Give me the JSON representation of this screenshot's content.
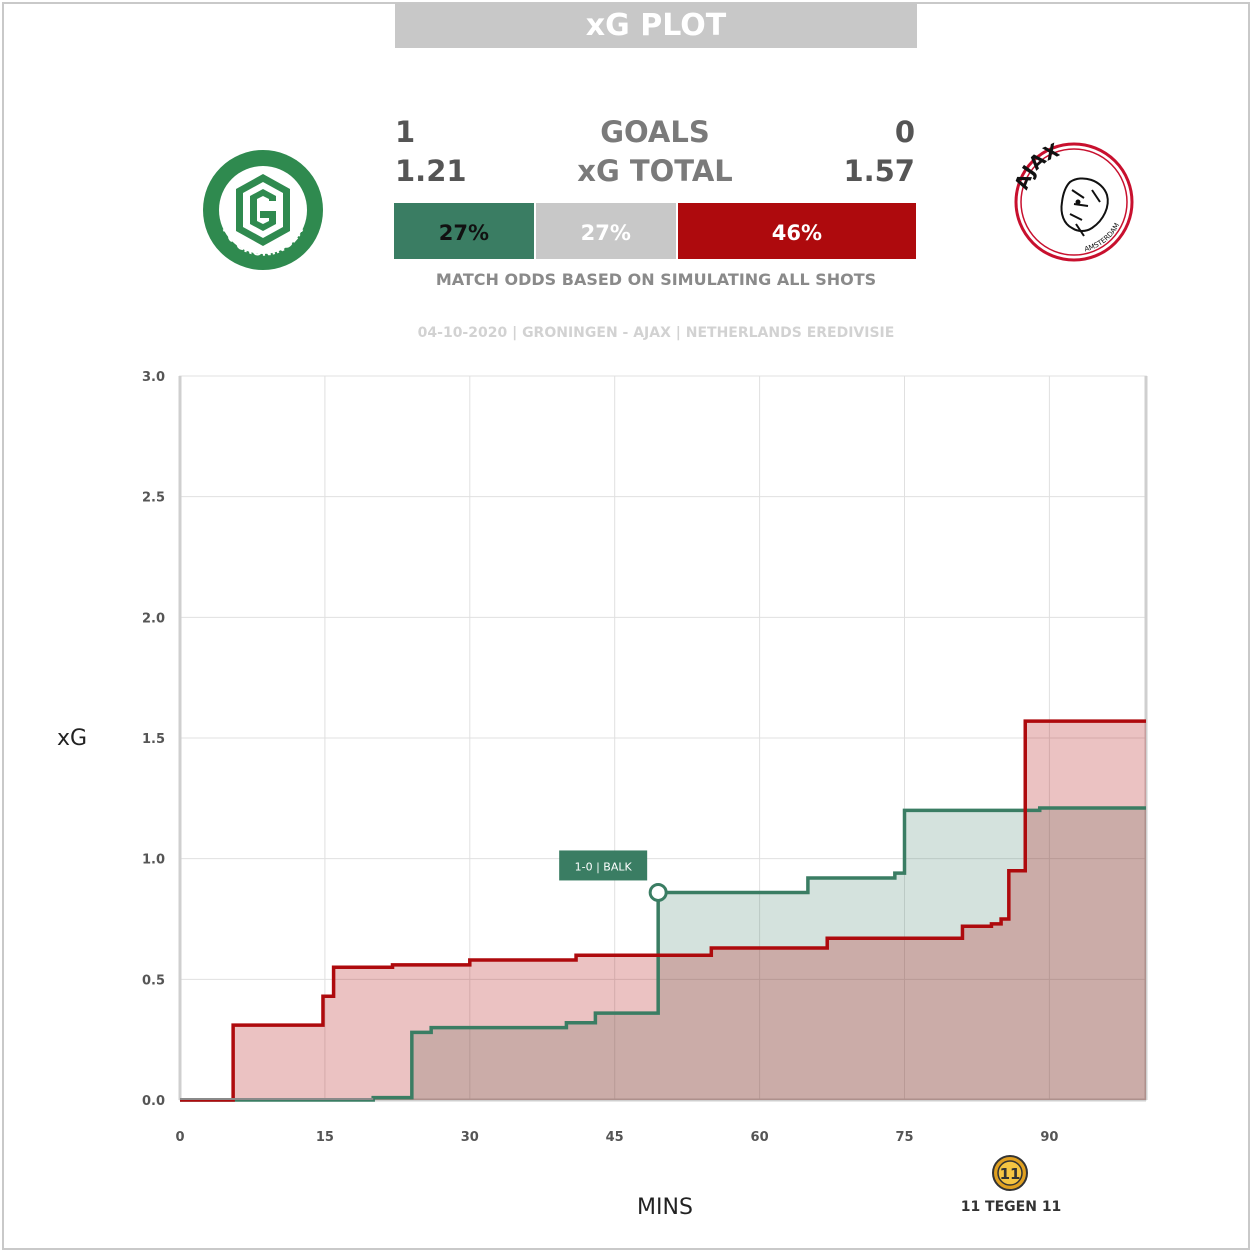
{
  "header": {
    "title": "xG PLOT"
  },
  "teams": {
    "home": {
      "name": "FC GRONINGEN",
      "goals": "1",
      "xg_total": "1.21",
      "color": "#3a7d63"
    },
    "away": {
      "name": "AJAX",
      "logo_sub": "AMSTERDAM",
      "goals": "0",
      "xg_total": "1.57",
      "color": "#ae0a0d"
    }
  },
  "labels": {
    "goals": "GOALS",
    "xg_total": "xG TOTAL"
  },
  "odds": {
    "home_win": 27,
    "home_win_label": "27%",
    "draw": 27,
    "draw_label": "27%",
    "away_win": 46,
    "away_win_label": "46%",
    "draw_color": "#c8c8c8",
    "note": "MATCH ODDS BASED ON SIMULATING ALL SHOTS"
  },
  "match_info": "04-10-2020 | GRONINGEN - AJAX | NETHERLANDS EREDIVISIE",
  "branding": {
    "monogram": "11",
    "text": "11 TEGEN 11"
  },
  "chart_data": {
    "type": "area",
    "xlabel": "MINS",
    "ylabel": "xG",
    "xlim": [
      0,
      100
    ],
    "ylim": [
      0,
      3
    ],
    "x_ticks": [
      "0",
      "15",
      "30",
      "45",
      "60",
      "75",
      "90"
    ],
    "y_ticks": [
      "0.0",
      "0.5",
      "1.0",
      "1.5",
      "2.0",
      "2.5",
      "3.0"
    ],
    "grid": true,
    "step": true,
    "series": [
      {
        "name": "Groningen",
        "color": "#3a7d63",
        "x": [
          0,
          20,
          24,
          26,
          40,
          43,
          49.5,
          65,
          74,
          75,
          89,
          100
        ],
        "y": [
          0,
          0.01,
          0.28,
          0.3,
          0.32,
          0.36,
          0.86,
          0.92,
          0.94,
          1.2,
          1.21,
          1.21
        ]
      },
      {
        "name": "Ajax",
        "color": "#ae0a0d",
        "x": [
          0,
          5.5,
          14.8,
          15.9,
          22,
          30,
          41,
          55,
          67,
          81,
          84,
          85,
          85.8,
          87.5,
          100
        ],
        "y": [
          0,
          0.31,
          0.43,
          0.55,
          0.56,
          0.58,
          0.6,
          0.63,
          0.67,
          0.72,
          0.73,
          0.75,
          0.95,
          1.57,
          1.57
        ]
      }
    ],
    "annotations": [
      {
        "x": 49.5,
        "y": 0.86,
        "text": "1-0 | BALK",
        "series": "Groningen"
      }
    ]
  }
}
